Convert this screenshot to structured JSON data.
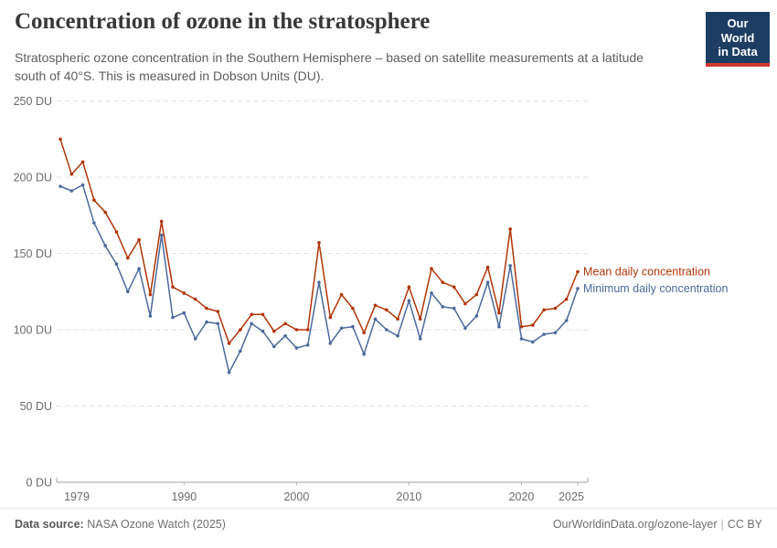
{
  "header": {
    "title": "Concentration of ozone in the stratosphere",
    "subtitle_lines": [
      "Stratospheric ozone concentration in the Southern Hemisphere – based on satellite measurements at a latitude",
      "south of 40°S. This is measured in Dobson Units (DU)."
    ],
    "logo": {
      "line1": "Our World",
      "line2": "in Data",
      "bg_color": "#1d3d63",
      "bar_color": "#d0382f"
    }
  },
  "chart_data": {
    "type": "line",
    "title": "Concentration of ozone in the stratosphere",
    "xlabel": "",
    "ylabel": "Dobson Units (DU)",
    "unit": "DU",
    "ylim": [
      0,
      250
    ],
    "xlim": [
      1979,
      2025
    ],
    "yticks": [
      0,
      50,
      100,
      150,
      200,
      250
    ],
    "ytick_suffix": " DU",
    "xticks": [
      1979,
      1990,
      2000,
      2010,
      2020,
      2025
    ],
    "grid": "horizontal-dashed",
    "legend_position": "right-of-line-ends",
    "x": [
      1979,
      1980,
      1981,
      1982,
      1983,
      1984,
      1985,
      1986,
      1987,
      1988,
      1989,
      1990,
      1991,
      1992,
      1993,
      1994,
      1995,
      1996,
      1997,
      1998,
      1999,
      2000,
      2001,
      2002,
      2003,
      2004,
      2005,
      2006,
      2007,
      2008,
      2009,
      2010,
      2011,
      2012,
      2013,
      2014,
      2015,
      2016,
      2017,
      2018,
      2019,
      2020,
      2021,
      2022,
      2023,
      2024,
      2025
    ],
    "series": [
      {
        "name": "Mean daily concentration",
        "color": "#b13507",
        "values": [
          225,
          202,
          210,
          185,
          177,
          164,
          147,
          159,
          123,
          171,
          128,
          124,
          120,
          114,
          112,
          91,
          100,
          110,
          110,
          99,
          104,
          100,
          100,
          157,
          108,
          123,
          114,
          98,
          116,
          113,
          107,
          128,
          107,
          140,
          131,
          128,
          117,
          123,
          141,
          111,
          166,
          102,
          103,
          113,
          114,
          120,
          138
        ]
      },
      {
        "name": "Minimum daily concentration",
        "color": "#4c6a9c",
        "values": [
          194,
          191,
          195,
          170,
          155,
          143,
          125,
          140,
          109,
          162,
          108,
          111,
          94,
          105,
          104,
          72,
          86,
          104,
          99,
          89,
          96,
          88,
          90,
          131,
          91,
          101,
          102,
          84,
          107,
          100,
          96,
          119,
          94,
          124,
          115,
          114,
          101,
          109,
          131,
          102,
          142,
          94,
          92,
          97,
          98,
          106,
          127
        ]
      }
    ]
  },
  "footer": {
    "source_label": "Data source:",
    "source_value": "NASA Ozone Watch (2025)",
    "link": "OurWorldinData.org/ozone-layer",
    "separator": "|",
    "license": "CC BY"
  }
}
